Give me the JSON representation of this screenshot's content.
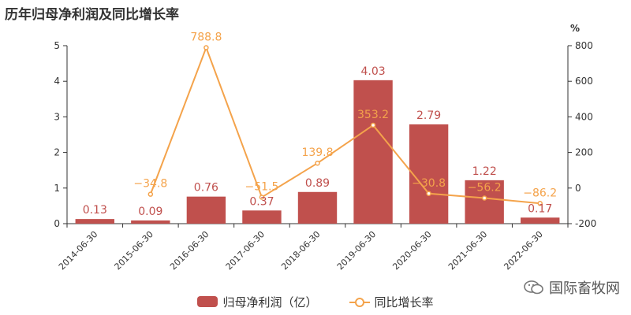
{
  "title": "历年归母净利润及同比增长率",
  "watermark": "国际畜牧网",
  "chart_data": {
    "type": "bar",
    "title": "历年归母净利润及同比增长率",
    "categories": [
      "2014-06-30",
      "2015-06-30",
      "2016-06-30",
      "2017-06-30",
      "2018-06-30",
      "2019-06-30",
      "2020-06-30",
      "2021-06-30",
      "2022-06-30"
    ],
    "left_axis": {
      "ylim": [
        0,
        5
      ],
      "ticks": [
        "0",
        "1",
        "2",
        "3",
        "4",
        "5"
      ]
    },
    "right_axis": {
      "unit": "%",
      "ylim": [
        -200,
        800
      ],
      "ticks": [
        "-200",
        "0",
        "200",
        "400",
        "600",
        "800"
      ]
    },
    "series": [
      {
        "name": "归母净利润（亿）",
        "type": "bar",
        "axis": "left",
        "color": "#c0504d",
        "values": [
          0.13,
          0.09,
          0.76,
          0.37,
          0.89,
          4.03,
          2.79,
          1.22,
          0.17
        ],
        "labels": [
          "0.13",
          "0.09",
          "0.76",
          "0.37",
          "0.89",
          "4.03",
          "2.79",
          "1.22",
          "0.17"
        ]
      },
      {
        "name": "同比增长率",
        "type": "line",
        "axis": "right",
        "color": "#f4a34b",
        "values": [
          null,
          -34.8,
          788.8,
          -51.5,
          139.8,
          353.2,
          -30.8,
          -56.2,
          -86.2
        ],
        "labels": [
          "",
          "−34.8",
          "788.8",
          "−51.5",
          "139.8",
          "353.2",
          "−30.8",
          "−56.2",
          "−86.2"
        ]
      }
    ],
    "grid": false,
    "legend_position": "bottom-center"
  }
}
